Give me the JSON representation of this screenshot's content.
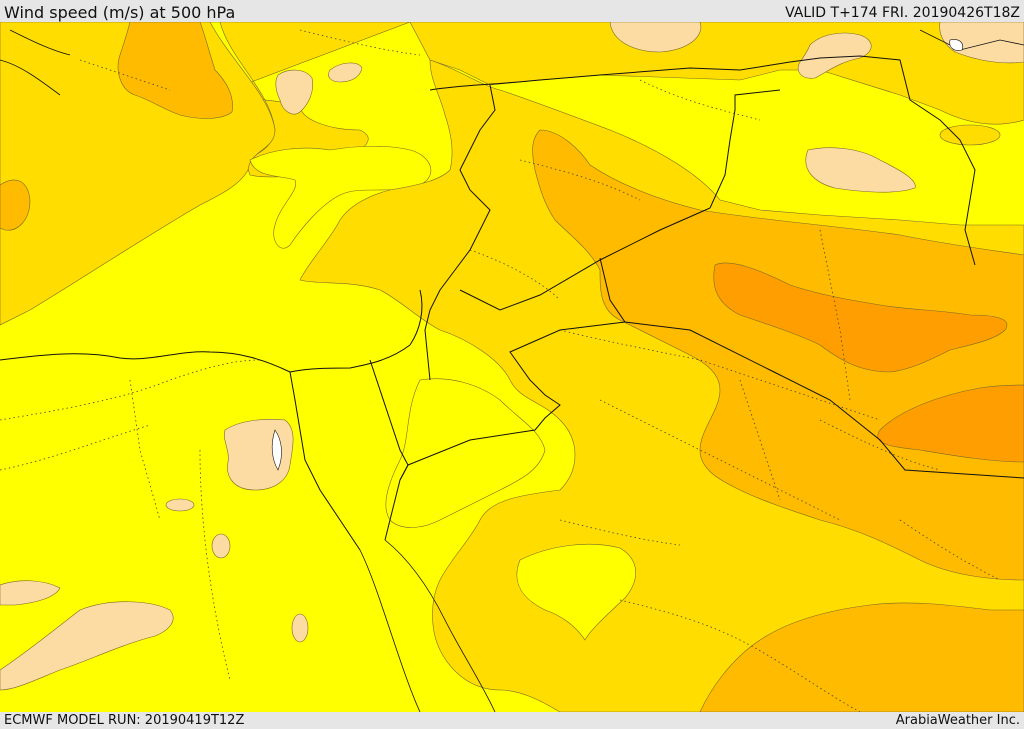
{
  "header": {
    "title": "Wind speed (m/s) at 500 hPa",
    "valid": "VALID T+174 FRI. 20190426T18Z"
  },
  "footer": {
    "model_run": "ECMWF MODEL RUN: 20190419T12Z",
    "credit": "ArabiaWeather Inc."
  },
  "colors": {
    "band_light": "#ffff00",
    "band_mid": "#ffdd00",
    "band_strong": "#ffbb00",
    "band_max": "#ff9e00",
    "band_weak": "#fddca3",
    "frame": "#e6e6e6"
  }
}
